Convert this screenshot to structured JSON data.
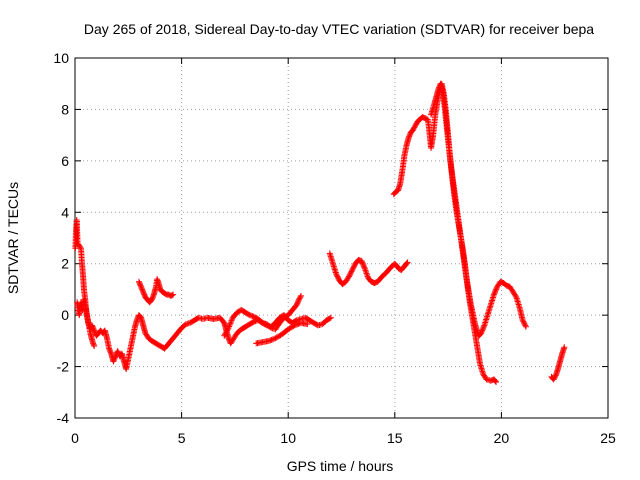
{
  "chart_data": {
    "type": "scatter",
    "title": "Day 265 of 2018, Sidereal Day-to-day VTEC variation (SDTVAR) for receiver bepa",
    "xlabel": "GPS time / hours",
    "ylabel": "SDTVAR / TECUs",
    "xlim": [
      0,
      25
    ],
    "ylim": [
      -4,
      10
    ],
    "xticks": [
      "0",
      "5",
      "10",
      "15",
      "20",
      "25"
    ],
    "yticks": [
      "-4",
      "-2",
      "0",
      "2",
      "4",
      "6",
      "8",
      "10"
    ],
    "grid": true,
    "marker": "+",
    "color": "#ff0000",
    "segments": [
      [
        [
          0.02,
          2.6
        ],
        [
          0.05,
          3.3
        ],
        [
          0.08,
          3.7
        ],
        [
          0.12,
          2.8
        ],
        [
          0.2,
          2.7
        ],
        [
          0.28,
          2.6
        ],
        [
          0.33,
          2.0
        ],
        [
          0.38,
          1.5
        ],
        [
          0.42,
          1.0
        ],
        [
          0.48,
          0.6
        ],
        [
          0.52,
          0.2
        ],
        [
          0.58,
          -0.1
        ],
        [
          0.65,
          -0.4
        ],
        [
          0.72,
          -0.7
        ],
        [
          0.78,
          -0.9
        ],
        [
          0.85,
          -1.1
        ],
        [
          0.9,
          -1.2
        ]
      ],
      [
        [
          0.1,
          0.5
        ],
        [
          0.14,
          0.3
        ],
        [
          0.2,
          0.0
        ],
        [
          0.28,
          0.5
        ],
        [
          0.35,
          0.2
        ],
        [
          0.42,
          0.6
        ],
        [
          0.5,
          0.3
        ],
        [
          0.56,
          0.0
        ],
        [
          0.62,
          -0.3
        ],
        [
          0.7,
          -0.5
        ],
        [
          0.8,
          -0.4
        ],
        [
          0.9,
          -0.6
        ],
        [
          1.0,
          -0.8
        ],
        [
          1.1,
          -0.7
        ],
        [
          1.2,
          -0.6
        ],
        [
          1.3,
          -0.7
        ],
        [
          1.4,
          -0.6
        ],
        [
          1.5,
          -0.9
        ],
        [
          1.6,
          -1.3
        ],
        [
          1.7,
          -1.5
        ],
        [
          1.8,
          -1.8
        ],
        [
          1.9,
          -1.6
        ],
        [
          2.0,
          -1.4
        ],
        [
          2.1,
          -1.6
        ],
        [
          2.2,
          -1.5
        ],
        [
          2.3,
          -1.8
        ],
        [
          2.4,
          -2.1
        ],
        [
          2.5,
          -1.7
        ],
        [
          2.6,
          -1.3
        ],
        [
          2.7,
          -0.9
        ],
        [
          2.8,
          -0.5
        ],
        [
          2.9,
          -0.2
        ],
        [
          3.0,
          0.0
        ],
        [
          3.1,
          -0.1
        ],
        [
          3.2,
          -0.4
        ],
        [
          3.3,
          -0.7
        ],
        [
          3.45,
          -0.9
        ],
        [
          3.6,
          -1.0
        ],
        [
          3.8,
          -1.1
        ],
        [
          4.0,
          -1.2
        ],
        [
          4.2,
          -1.3
        ],
        [
          4.4,
          -1.1
        ],
        [
          4.6,
          -0.9
        ],
        [
          4.8,
          -0.7
        ],
        [
          5.0,
          -0.5
        ],
        [
          5.2,
          -0.35
        ],
        [
          5.4,
          -0.3
        ],
        [
          5.6,
          -0.2
        ],
        [
          5.8,
          -0.1
        ],
        [
          6.0,
          -0.15
        ],
        [
          6.2,
          -0.1
        ],
        [
          6.5,
          -0.15
        ],
        [
          6.8,
          -0.1
        ],
        [
          7.0,
          -0.3
        ],
        [
          7.1,
          -0.6
        ],
        [
          7.2,
          -0.9
        ],
        [
          7.3,
          -1.1
        ],
        [
          7.45,
          -0.9
        ],
        [
          7.6,
          -0.7
        ],
        [
          7.8,
          -0.55
        ],
        [
          8.0,
          -0.45
        ],
        [
          8.2,
          -0.35
        ],
        [
          8.4,
          -0.25
        ],
        [
          8.6,
          -0.2
        ],
        [
          8.8,
          -0.3
        ],
        [
          9.0,
          -0.35
        ],
        [
          9.2,
          -0.5
        ],
        [
          9.4,
          -0.55
        ],
        [
          9.6,
          -0.3
        ],
        [
          9.8,
          -0.1
        ],
        [
          10.0,
          0.0
        ],
        [
          10.2,
          0.2
        ],
        [
          10.4,
          0.4
        ],
        [
          10.5,
          0.6
        ],
        [
          10.6,
          0.75
        ]
      ],
      [
        [
          3.0,
          1.3
        ],
        [
          3.1,
          1.1
        ],
        [
          3.2,
          0.9
        ],
        [
          3.3,
          0.7
        ],
        [
          3.4,
          0.6
        ],
        [
          3.5,
          0.5
        ],
        [
          3.6,
          0.6
        ],
        [
          3.7,
          0.8
        ],
        [
          3.8,
          1.1
        ],
        [
          3.85,
          1.4
        ],
        [
          3.9,
          1.3
        ],
        [
          4.0,
          1.0
        ],
        [
          4.1,
          0.9
        ],
        [
          4.2,
          0.85
        ],
        [
          4.3,
          0.8
        ],
        [
          4.4,
          0.8
        ],
        [
          4.5,
          0.75
        ],
        [
          4.6,
          0.8
        ]
      ],
      [
        [
          7.0,
          -0.8
        ],
        [
          7.2,
          -0.5
        ],
        [
          7.4,
          -0.1
        ],
        [
          7.6,
          0.1
        ],
        [
          7.8,
          0.2
        ],
        [
          8.0,
          0.1
        ],
        [
          8.2,
          0.0
        ],
        [
          8.5,
          -0.1
        ],
        [
          8.8,
          -0.3
        ],
        [
          9.0,
          -0.4
        ],
        [
          9.2,
          -0.45
        ],
        [
          9.4,
          -0.3
        ],
        [
          9.6,
          -0.1
        ],
        [
          9.8,
          0.0
        ],
        [
          10.0,
          -0.2
        ],
        [
          10.2,
          -0.3
        ],
        [
          10.4,
          -0.2
        ],
        [
          10.6,
          -0.15
        ],
        [
          10.8,
          -0.1
        ],
        [
          11.0,
          -0.2
        ],
        [
          11.2,
          -0.3
        ],
        [
          11.4,
          -0.4
        ],
        [
          11.6,
          -0.35
        ],
        [
          11.8,
          -0.2
        ],
        [
          12.0,
          -0.1
        ]
      ],
      [
        [
          8.5,
          -1.1
        ],
        [
          8.8,
          -1.05
        ],
        [
          9.1,
          -1.0
        ],
        [
          9.4,
          -0.9
        ],
        [
          9.7,
          -0.75
        ],
        [
          10.0,
          -0.55
        ],
        [
          10.3,
          -0.4
        ],
        [
          10.6,
          -0.3
        ],
        [
          10.9,
          -0.35
        ]
      ],
      [
        [
          11.95,
          2.4
        ],
        [
          12.1,
          2.0
        ],
        [
          12.25,
          1.6
        ],
        [
          12.4,
          1.35
        ],
        [
          12.55,
          1.2
        ],
        [
          12.7,
          1.3
        ],
        [
          12.85,
          1.5
        ],
        [
          13.0,
          1.75
        ],
        [
          13.15,
          2.0
        ],
        [
          13.3,
          2.15
        ],
        [
          13.45,
          2.1
        ],
        [
          13.6,
          1.8
        ],
        [
          13.75,
          1.45
        ],
        [
          13.9,
          1.3
        ],
        [
          14.05,
          1.25
        ],
        [
          14.2,
          1.3
        ],
        [
          14.4,
          1.5
        ],
        [
          14.6,
          1.65
        ],
        [
          14.8,
          1.85
        ],
        [
          15.0,
          2.0
        ],
        [
          15.1,
          1.9
        ],
        [
          15.2,
          1.8
        ],
        [
          15.3,
          1.75
        ],
        [
          15.4,
          1.85
        ],
        [
          15.5,
          1.95
        ],
        [
          15.6,
          2.05
        ]
      ],
      [
        [
          14.95,
          4.7
        ],
        [
          15.05,
          4.8
        ],
        [
          15.15,
          4.85
        ],
        [
          15.25,
          5.1
        ],
        [
          15.35,
          5.6
        ],
        [
          15.45,
          6.2
        ],
        [
          15.55,
          6.6
        ],
        [
          15.65,
          6.9
        ],
        [
          15.75,
          7.1
        ],
        [
          15.85,
          7.2
        ],
        [
          15.95,
          7.35
        ],
        [
          16.05,
          7.5
        ],
        [
          16.15,
          7.6
        ],
        [
          16.3,
          7.7
        ],
        [
          16.45,
          7.65
        ],
        [
          16.55,
          7.6
        ],
        [
          16.6,
          7.3
        ],
        [
          16.65,
          6.9
        ],
        [
          16.7,
          6.5
        ],
        [
          16.8,
          7.0
        ],
        [
          16.9,
          7.8
        ],
        [
          17.0,
          8.3
        ],
        [
          17.1,
          8.7
        ],
        [
          17.2,
          9.0
        ],
        [
          17.3,
          8.6
        ],
        [
          17.4,
          7.9
        ],
        [
          17.5,
          7.0
        ],
        [
          17.6,
          6.1
        ],
        [
          17.7,
          5.3
        ],
        [
          17.8,
          4.6
        ],
        [
          17.9,
          4.0
        ],
        [
          18.0,
          3.5
        ],
        [
          18.1,
          3.0
        ],
        [
          18.2,
          2.5
        ],
        [
          18.3,
          1.9
        ],
        [
          18.4,
          1.2
        ],
        [
          18.5,
          0.6
        ],
        [
          18.6,
          0.1
        ],
        [
          18.7,
          -0.4
        ],
        [
          18.8,
          -0.9
        ],
        [
          18.9,
          -1.4
        ],
        [
          19.0,
          -1.9
        ],
        [
          19.15,
          -2.3
        ],
        [
          19.3,
          -2.5
        ],
        [
          19.5,
          -2.55
        ],
        [
          19.65,
          -2.5
        ],
        [
          19.75,
          -2.6
        ]
      ],
      [
        [
          16.7,
          7.8
        ],
        [
          16.85,
          8.2
        ],
        [
          16.95,
          8.5
        ],
        [
          17.05,
          8.8
        ],
        [
          17.15,
          9.0
        ],
        [
          17.25,
          8.7
        ],
        [
          17.35,
          8.0
        ],
        [
          17.45,
          7.2
        ],
        [
          17.55,
          6.4
        ],
        [
          17.65,
          5.7
        ],
        [
          17.75,
          5.1
        ],
        [
          17.85,
          4.5
        ],
        [
          17.95,
          3.9
        ],
        [
          18.05,
          3.3
        ],
        [
          18.15,
          2.7
        ],
        [
          18.25,
          2.1
        ],
        [
          18.35,
          1.5
        ],
        [
          18.45,
          1.0
        ],
        [
          18.55,
          0.5
        ],
        [
          18.65,
          0.1
        ],
        [
          18.75,
          -0.3
        ],
        [
          18.85,
          -0.6
        ],
        [
          18.95,
          -0.8
        ],
        [
          19.05,
          -0.7
        ],
        [
          19.2,
          -0.4
        ],
        [
          19.35,
          0.0
        ],
        [
          19.5,
          0.4
        ],
        [
          19.65,
          0.8
        ],
        [
          19.8,
          1.1
        ],
        [
          19.95,
          1.3
        ],
        [
          20.1,
          1.25
        ],
        [
          20.25,
          1.15
        ],
        [
          20.4,
          1.1
        ],
        [
          20.55,
          0.9
        ],
        [
          20.7,
          0.7
        ],
        [
          20.85,
          0.3
        ],
        [
          21.0,
          -0.2
        ],
        [
          21.15,
          -0.45
        ]
      ],
      [
        [
          22.35,
          -2.4
        ],
        [
          22.45,
          -2.5
        ],
        [
          22.55,
          -2.35
        ],
        [
          22.65,
          -2.1
        ],
        [
          22.75,
          -1.8
        ],
        [
          22.85,
          -1.5
        ],
        [
          22.95,
          -1.25
        ]
      ]
    ]
  }
}
